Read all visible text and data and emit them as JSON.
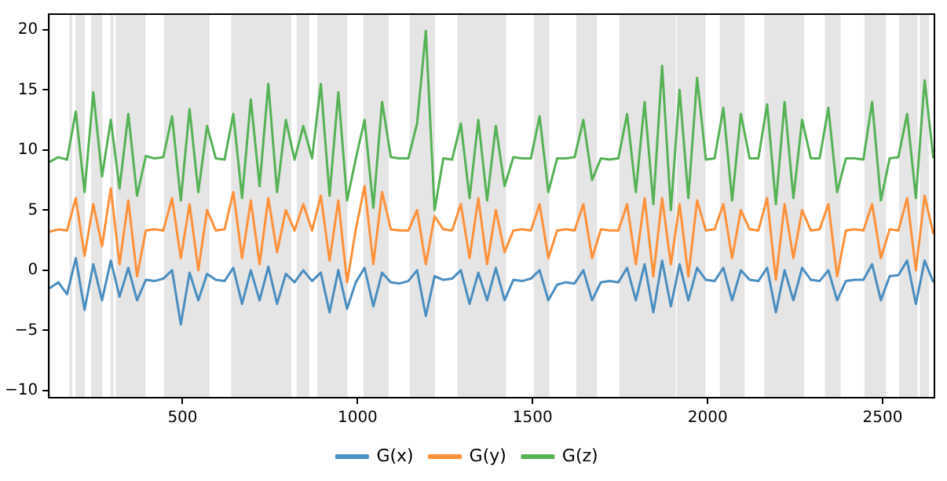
{
  "chart_data": {
    "type": "line",
    "x": [
      120,
      145,
      170,
      195,
      220,
      245,
      270,
      295,
      320,
      345,
      370,
      395,
      420,
      445,
      470,
      495,
      520,
      545,
      570,
      595,
      620,
      645,
      670,
      695,
      720,
      745,
      770,
      795,
      820,
      845,
      870,
      895,
      920,
      945,
      970,
      995,
      1020,
      1045,
      1070,
      1095,
      1120,
      1145,
      1170,
      1195,
      1220,
      1245,
      1270,
      1295,
      1320,
      1345,
      1370,
      1395,
      1420,
      1445,
      1470,
      1495,
      1520,
      1545,
      1570,
      1595,
      1620,
      1645,
      1670,
      1695,
      1720,
      1745,
      1770,
      1795,
      1820,
      1845,
      1870,
      1895,
      1920,
      1945,
      1970,
      1995,
      2020,
      2045,
      2070,
      2095,
      2120,
      2145,
      2170,
      2195,
      2220,
      2245,
      2270,
      2295,
      2320,
      2345,
      2370,
      2395,
      2420,
      2445,
      2470,
      2495,
      2520,
      2545,
      2570,
      2595,
      2620,
      2645
    ],
    "series": [
      {
        "name": "G(x)",
        "color": "#4a8ec0",
        "values": [
          -1.5,
          -1.0,
          -2.0,
          1.0,
          -3.3,
          0.5,
          -2.5,
          0.8,
          -2.2,
          0.2,
          -2.5,
          -0.8,
          -0.9,
          -0.7,
          0.0,
          -4.5,
          -0.2,
          -2.5,
          -0.3,
          -0.8,
          -0.9,
          0.2,
          -2.8,
          0.0,
          -2.5,
          0.3,
          -2.8,
          -0.3,
          -1.0,
          0.0,
          -0.9,
          -0.2,
          -3.5,
          0.0,
          -3.2,
          -1.0,
          0.2,
          -3.0,
          -0.2,
          -1.0,
          -1.1,
          -0.9,
          0.0,
          -3.8,
          -0.5,
          -0.8,
          -0.7,
          0.0,
          -2.8,
          -0.2,
          -2.5,
          0.2,
          -2.5,
          -0.8,
          -0.9,
          -0.7,
          0.0,
          -2.5,
          -1.2,
          -1.0,
          -1.1,
          0.0,
          -2.5,
          -1.0,
          -0.9,
          -1.0,
          0.2,
          -2.5,
          0.5,
          -3.5,
          0.8,
          -3.0,
          0.5,
          -2.5,
          0.2,
          -0.8,
          -0.9,
          0.2,
          -2.5,
          0.0,
          -0.8,
          -0.9,
          0.2,
          -3.5,
          0.0,
          -2.5,
          0.2,
          -0.8,
          -0.9,
          0.0,
          -2.5,
          -0.9,
          -0.8,
          -0.8,
          0.5,
          -2.5,
          -0.5,
          -0.4,
          0.8,
          -2.8,
          0.8,
          -1.0
        ]
      },
      {
        "name": "G(y)",
        "color": "#fe913a",
        "values": [
          3.2,
          3.4,
          3.3,
          6.0,
          1.2,
          5.5,
          2.0,
          6.8,
          0.5,
          5.8,
          -0.5,
          3.3,
          3.4,
          3.3,
          6.0,
          1.0,
          5.5,
          0.0,
          5.0,
          3.3,
          3.4,
          6.5,
          1.0,
          5.8,
          0.5,
          6.0,
          1.5,
          5.0,
          3.3,
          5.5,
          3.3,
          6.2,
          0.8,
          5.8,
          -1.0,
          3.4,
          7.0,
          0.5,
          6.5,
          3.4,
          3.3,
          3.3,
          5.0,
          0.5,
          4.5,
          3.4,
          3.3,
          5.5,
          1.0,
          6.0,
          0.5,
          5.0,
          1.5,
          3.3,
          3.4,
          3.3,
          5.5,
          1.0,
          3.3,
          3.4,
          3.3,
          5.5,
          1.0,
          3.4,
          3.3,
          3.3,
          5.5,
          0.5,
          6.0,
          -0.5,
          6.0,
          0.5,
          5.5,
          -0.5,
          5.8,
          3.3,
          3.4,
          5.5,
          1.0,
          5.0,
          3.4,
          3.3,
          6.0,
          -0.8,
          5.5,
          1.0,
          5.0,
          3.3,
          3.4,
          5.5,
          -0.5,
          3.3,
          3.4,
          3.3,
          5.5,
          1.0,
          3.4,
          3.3,
          6.0,
          0.0,
          6.2,
          3.0
        ]
      },
      {
        "name": "G(z)",
        "color": "#55b255",
        "values": [
          9.0,
          9.4,
          9.2,
          13.2,
          6.5,
          14.8,
          7.8,
          12.5,
          6.8,
          13.0,
          6.2,
          9.5,
          9.3,
          9.4,
          12.8,
          5.8,
          13.4,
          6.5,
          12.0,
          9.3,
          9.2,
          13.0,
          6.0,
          14.2,
          7.0,
          15.5,
          6.5,
          12.5,
          9.2,
          12.0,
          9.3,
          15.5,
          6.2,
          14.8,
          5.8,
          9.3,
          12.5,
          5.2,
          14.0,
          9.4,
          9.3,
          9.3,
          12.2,
          19.9,
          5.0,
          9.3,
          9.2,
          12.2,
          6.0,
          12.5,
          5.8,
          12.0,
          7.0,
          9.4,
          9.3,
          9.3,
          12.8,
          6.5,
          9.3,
          9.3,
          9.4,
          12.5,
          7.5,
          9.3,
          9.2,
          9.3,
          13.0,
          6.5,
          14.0,
          5.5,
          17.0,
          5.0,
          15.0,
          6.0,
          16.0,
          9.2,
          9.3,
          13.5,
          5.8,
          13.0,
          9.3,
          9.3,
          13.8,
          5.5,
          14.0,
          6.0,
          12.5,
          9.3,
          9.3,
          13.5,
          6.5,
          9.3,
          9.3,
          9.2,
          14.0,
          5.8,
          9.3,
          9.4,
          13.0,
          6.0,
          15.8,
          9.3
        ]
      }
    ],
    "xlim": [
      118,
      2648
    ],
    "xticks": [
      500,
      1000,
      1500,
      2000,
      2500
    ],
    "ylim": [
      -10.6,
      21.3
    ],
    "yticks": [
      {
        "value": -10,
        "label": "−10"
      },
      {
        "value": -5,
        "label": "−5"
      },
      0,
      5,
      10,
      15,
      20
    ],
    "bands": [
      {
        "axis": "x",
        "from": 177,
        "to": 185,
        "color": "#e5e5e5"
      },
      {
        "axis": "x",
        "from": 194,
        "to": 221,
        "color": "#e5e5e5"
      },
      {
        "axis": "x",
        "from": 239,
        "to": 271,
        "color": "#e5e5e5"
      },
      {
        "axis": "x",
        "from": 294,
        "to": 303,
        "color": "#e5e5e5"
      },
      {
        "axis": "x",
        "from": 309,
        "to": 394,
        "color": "#e5e5e5"
      },
      {
        "axis": "x",
        "from": 447,
        "to": 577,
        "color": "#e5e5e5"
      },
      {
        "axis": "x",
        "from": 639,
        "to": 811,
        "color": "#e5e5e5"
      },
      {
        "axis": "x",
        "from": 826,
        "to": 862,
        "color": "#e5e5e5"
      },
      {
        "axis": "x",
        "from": 885,
        "to": 971,
        "color": "#e5e5e5"
      },
      {
        "axis": "x",
        "from": 1017,
        "to": 1089,
        "color": "#e5e5e5"
      },
      {
        "axis": "x",
        "from": 1149,
        "to": 1221,
        "color": "#e5e5e5"
      },
      {
        "axis": "x",
        "from": 1285,
        "to": 1424,
        "color": "#e5e5e5"
      },
      {
        "axis": "x",
        "from": 1503,
        "to": 1548,
        "color": "#e5e5e5"
      },
      {
        "axis": "x",
        "from": 1625,
        "to": 1684,
        "color": "#e5e5e5"
      },
      {
        "axis": "x",
        "from": 1748,
        "to": 1909,
        "color": "#e5e5e5"
      },
      {
        "axis": "x",
        "from": 1912,
        "to": 1994,
        "color": "#e5e5e5"
      },
      {
        "axis": "x",
        "from": 2035,
        "to": 2106,
        "color": "#e5e5e5"
      },
      {
        "axis": "x",
        "from": 2162,
        "to": 2276,
        "color": "#e5e5e5"
      },
      {
        "axis": "x",
        "from": 2335,
        "to": 2380,
        "color": "#e5e5e5"
      },
      {
        "axis": "x",
        "from": 2448,
        "to": 2510,
        "color": "#e5e5e5"
      },
      {
        "axis": "x",
        "from": 2547,
        "to": 2600,
        "color": "#e5e5e5"
      },
      {
        "axis": "x",
        "from": 2606,
        "to": 2632,
        "color": "#e5e5e5"
      }
    ],
    "legend": "bottom",
    "marker": "none",
    "line_style": "solid"
  }
}
